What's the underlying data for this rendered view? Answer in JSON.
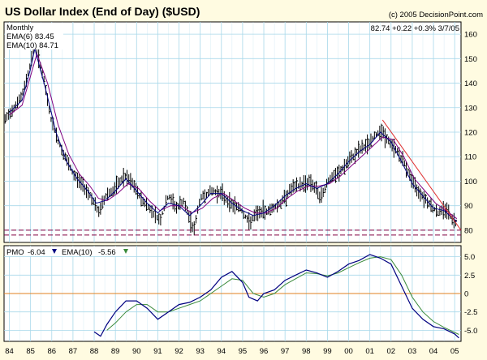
{
  "header": {
    "title": "US Dollar Index (End of Day) ($USD)",
    "copyright": "(c) 2005 DecisionPoint.com",
    "quote": "82.74 +0.22 +0.3% 3/7/05"
  },
  "colors": {
    "background": "#fffbe1",
    "panel": "#ffffff",
    "grid": "#a8d8ea",
    "price": "#000000",
    "ema6": "#000080",
    "ema10": "#800080",
    "trendline": "#e03030",
    "support": "#800040",
    "pmo": "#000080",
    "pmo_ema": "#3a8a3a",
    "zero_line": "#e08020"
  },
  "chart_data": [
    {
      "type": "line",
      "panel": "price",
      "subtitle": "Monthly",
      "x_ticks": [
        "84",
        "85",
        "86",
        "87",
        "88",
        "89",
        "90",
        "91",
        "92",
        "93",
        "94",
        "95",
        "96",
        "97",
        "98",
        "99",
        "00",
        "01",
        "02",
        "03",
        "04",
        "05"
      ],
      "x_range": [
        1983.75,
        2005.3
      ],
      "ylim": [
        75,
        165
      ],
      "y_ticks": [
        80,
        90,
        100,
        110,
        120,
        130,
        140,
        150,
        160
      ],
      "grid": true,
      "legend_position": "top-left",
      "series": [
        {
          "name": "Price",
          "style": "bars",
          "x": [
            1983.8,
            1984.2,
            1984.6,
            1985.0,
            1985.2,
            1985.6,
            1986.0,
            1986.5,
            1987.0,
            1987.5,
            1987.9,
            1988.2,
            1988.6,
            1988.9,
            1989.4,
            1989.8,
            1990.2,
            1990.7,
            1991.1,
            1991.5,
            1991.9,
            1992.2,
            1992.7,
            1993.0,
            1993.5,
            1994.0,
            1994.4,
            1994.9,
            1995.3,
            1995.7,
            1996.2,
            1996.8,
            1997.3,
            1997.6,
            1998.2,
            1998.7,
            1999.0,
            1999.5,
            2000.0,
            2000.4,
            2000.9,
            2001.2,
            2001.5,
            2001.9,
            2002.3,
            2002.7,
            2003.1,
            2003.5,
            2003.9,
            2004.2,
            2004.6,
            2004.9,
            2005.1
          ],
          "y": [
            125,
            130,
            135,
            148,
            157,
            142,
            124,
            112,
            103,
            98,
            93,
            87,
            95,
            96,
            102,
            99,
            93,
            88,
            84,
            94,
            89,
            92,
            80,
            93,
            96,
            95,
            91,
            89,
            83,
            87,
            88,
            91,
            97,
            98,
            100,
            93,
            100,
            103,
            108,
            112,
            115,
            118,
            121,
            116,
            112,
            106,
            98,
            94,
            90,
            87,
            89,
            84,
            83
          ]
        },
        {
          "name": "EMA(6) 83.45",
          "x": [
            1984.0,
            1984.6,
            1985.0,
            1985.2,
            1985.7,
            1986.2,
            1986.7,
            1987.2,
            1987.7,
            1988.1,
            1988.5,
            1989.0,
            1989.5,
            1990.0,
            1990.5,
            1991.0,
            1991.5,
            1992.0,
            1992.5,
            1993.0,
            1993.5,
            1994.0,
            1994.5,
            1995.0,
            1995.5,
            1996.0,
            1996.5,
            1997.0,
            1997.5,
            1998.0,
            1998.5,
            1999.0,
            1999.5,
            2000.0,
            2000.5,
            2001.0,
            2001.5,
            2002.0,
            2002.5,
            2003.0,
            2003.5,
            2004.0,
            2004.5,
            2005.1
          ],
          "y": [
            128,
            133,
            146,
            154,
            138,
            120,
            108,
            101,
            96,
            91,
            92,
            96,
            101,
            96,
            91,
            87,
            91,
            90,
            86,
            90,
            95,
            95,
            91,
            88,
            86,
            87,
            90,
            94,
            97,
            99,
            97,
            99,
            103,
            108,
            112,
            115,
            120,
            116,
            108,
            99,
            94,
            89,
            88,
            83.45
          ]
        },
        {
          "name": "EMA(10) 84.71",
          "x": [
            1984.0,
            1984.6,
            1985.0,
            1985.3,
            1985.8,
            1986.3,
            1986.8,
            1987.3,
            1987.8,
            1988.2,
            1988.6,
            1989.1,
            1989.6,
            1990.1,
            1990.6,
            1991.1,
            1991.6,
            1992.1,
            1992.6,
            1993.1,
            1993.6,
            1994.1,
            1994.6,
            1995.1,
            1995.6,
            1996.1,
            1996.6,
            1997.1,
            1997.6,
            1998.1,
            1998.6,
            1999.1,
            1999.6,
            2000.1,
            2000.6,
            2001.1,
            2001.6,
            2002.1,
            2002.6,
            2003.1,
            2003.6,
            2004.1,
            2004.6,
            2005.1
          ],
          "y": [
            127,
            131,
            143,
            152,
            140,
            123,
            111,
            103,
            98,
            93,
            92,
            95,
            99,
            97,
            92,
            88,
            90,
            90,
            87,
            89,
            93,
            95,
            92,
            89,
            87,
            87,
            89,
            93,
            96,
            98,
            98,
            99,
            102,
            106,
            110,
            114,
            118,
            117,
            110,
            101,
            96,
            91,
            88,
            84.71
          ]
        },
        {
          "name": "Trendline",
          "x": [
            2001.6,
            2005.3
          ],
          "y": [
            125,
            80
          ]
        },
        {
          "name": "Support",
          "x": [
            1983.75,
            2005.3
          ],
          "y": [
            80,
            80
          ]
        },
        {
          "name": "Support",
          "x": [
            1983.75,
            2005.3
          ],
          "y": [
            78,
            78
          ]
        }
      ]
    },
    {
      "type": "line",
      "panel": "pmo",
      "ylim": [
        -6.5,
        6.5
      ],
      "y_ticks": [
        -5.0,
        -2.5,
        0,
        2.5,
        5.0
      ],
      "y_tick_labels": [
        "-5.0",
        "-2.5",
        "0",
        "2.5",
        "5.0"
      ],
      "x_range": [
        1983.75,
        2005.3
      ],
      "grid": true,
      "series": [
        {
          "name": "PMO",
          "value_label": "-6.04",
          "x": [
            1988.0,
            1988.3,
            1988.6,
            1989.0,
            1989.5,
            1990.0,
            1990.5,
            1991.0,
            1991.5,
            1992.0,
            1992.5,
            1993.0,
            1993.5,
            1994.0,
            1994.5,
            1995.0,
            1995.3,
            1995.7,
            1996.0,
            1996.5,
            1997.0,
            1997.5,
            1998.0,
            1998.5,
            1999.0,
            1999.5,
            2000.0,
            2000.5,
            2001.0,
            2001.5,
            2002.0,
            2002.5,
            2003.0,
            2003.5,
            2004.0,
            2004.5,
            2005.0,
            2005.2
          ],
          "y": [
            -5.2,
            -5.8,
            -4.2,
            -2.5,
            -1.0,
            -1.0,
            -2.0,
            -3.5,
            -2.5,
            -1.5,
            -1.2,
            -0.5,
            0.5,
            2.2,
            3.0,
            1.5,
            -0.5,
            -1.0,
            0.0,
            0.5,
            1.8,
            2.5,
            3.2,
            2.8,
            2.2,
            3.0,
            4.0,
            4.5,
            5.3,
            4.8,
            4.0,
            1.0,
            -2.0,
            -3.5,
            -4.5,
            -4.8,
            -5.5,
            -6.04
          ]
        },
        {
          "name": "EMA(10)",
          "value_label": "-5.56",
          "x": [
            1988.6,
            1989.0,
            1989.5,
            1990.0,
            1990.5,
            1991.0,
            1991.5,
            1992.0,
            1992.5,
            1993.0,
            1993.5,
            1994.0,
            1994.5,
            1995.0,
            1995.5,
            1996.0,
            1996.5,
            1997.0,
            1997.5,
            1998.0,
            1998.5,
            1999.0,
            1999.5,
            2000.0,
            2000.5,
            2001.0,
            2001.5,
            2002.0,
            2002.5,
            2003.0,
            2003.5,
            2004.0,
            2004.5,
            2005.2
          ],
          "y": [
            -5.0,
            -4.0,
            -2.5,
            -1.5,
            -1.5,
            -2.5,
            -2.5,
            -2.0,
            -1.5,
            -1.0,
            0.0,
            1.0,
            2.0,
            1.8,
            0.0,
            -0.5,
            0.0,
            1.2,
            2.0,
            2.8,
            2.7,
            2.4,
            2.8,
            3.5,
            4.2,
            4.8,
            5.0,
            4.6,
            2.5,
            -0.5,
            -2.5,
            -3.8,
            -4.6,
            -5.56
          ]
        },
        {
          "name": "Zero",
          "x": [
            1983.75,
            2005.3
          ],
          "y": [
            0,
            0
          ]
        }
      ]
    }
  ]
}
